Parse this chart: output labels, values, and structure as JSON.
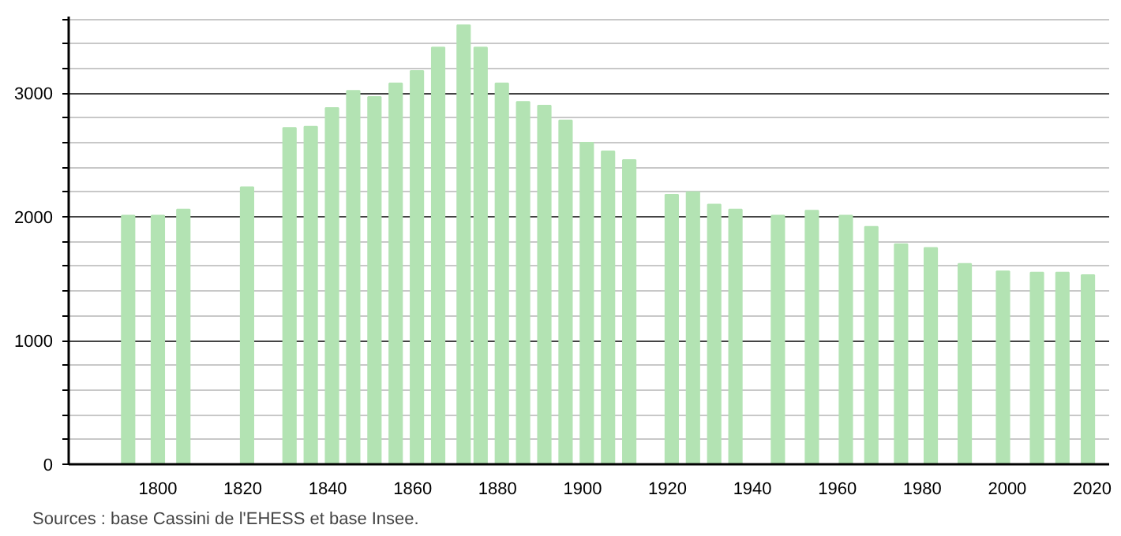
{
  "chart_data": {
    "type": "bar",
    "x": [
      1793,
      1800,
      1806,
      1821,
      1831,
      1836,
      1841,
      1846,
      1851,
      1856,
      1861,
      1866,
      1872,
      1876,
      1881,
      1886,
      1891,
      1896,
      1901,
      1906,
      1911,
      1921,
      1926,
      1931,
      1936,
      1946,
      1954,
      1962,
      1968,
      1975,
      1982,
      1990,
      1999,
      2006,
      2007,
      2013,
      2018,
      2019
    ],
    "values": [
      2010,
      2010,
      2060,
      2240,
      2720,
      2730,
      2880,
      3020,
      2970,
      3080,
      3180,
      3370,
      3550,
      3370,
      3080,
      2930,
      2900,
      2780,
      2600,
      2530,
      2460,
      2180,
      2200,
      2100,
      2060,
      2010,
      2050,
      2010,
      1920,
      1780,
      1750,
      1620,
      1560,
      null,
      1550,
      1550,
      null,
      1530
    ],
    "color": "#b3e3b3",
    "xlim": [
      1779,
      2024
    ],
    "xticks": [
      1800,
      1820,
      1840,
      1860,
      1880,
      1900,
      1920,
      1940,
      1960,
      1980,
      2000,
      2020
    ],
    "ylim": [
      0,
      3620
    ],
    "yticks": [
      0,
      {
        "value": 200,
        "label": null
      },
      {
        "value": 400,
        "label": null
      },
      {
        "value": 600,
        "label": null
      },
      {
        "value": 800,
        "label": null
      },
      1000,
      {
        "value": 1200,
        "label": null
      },
      {
        "value": 1400,
        "label": null
      },
      {
        "value": 1600,
        "label": null
      },
      {
        "value": 1800,
        "label": null
      },
      2000,
      {
        "value": 2200,
        "label": null
      },
      {
        "value": 2400,
        "label": null
      },
      {
        "value": 2600,
        "label": null
      },
      {
        "value": 2800,
        "label": null
      },
      3000,
      {
        "value": 3200,
        "label": null
      },
      {
        "value": 3400,
        "label": null
      },
      {
        "value": 3600,
        "label": null
      }
    ],
    "grid": "y",
    "annotations": [
      "Sources : base Cassini de l'EHESS et base Insee."
    ]
  }
}
